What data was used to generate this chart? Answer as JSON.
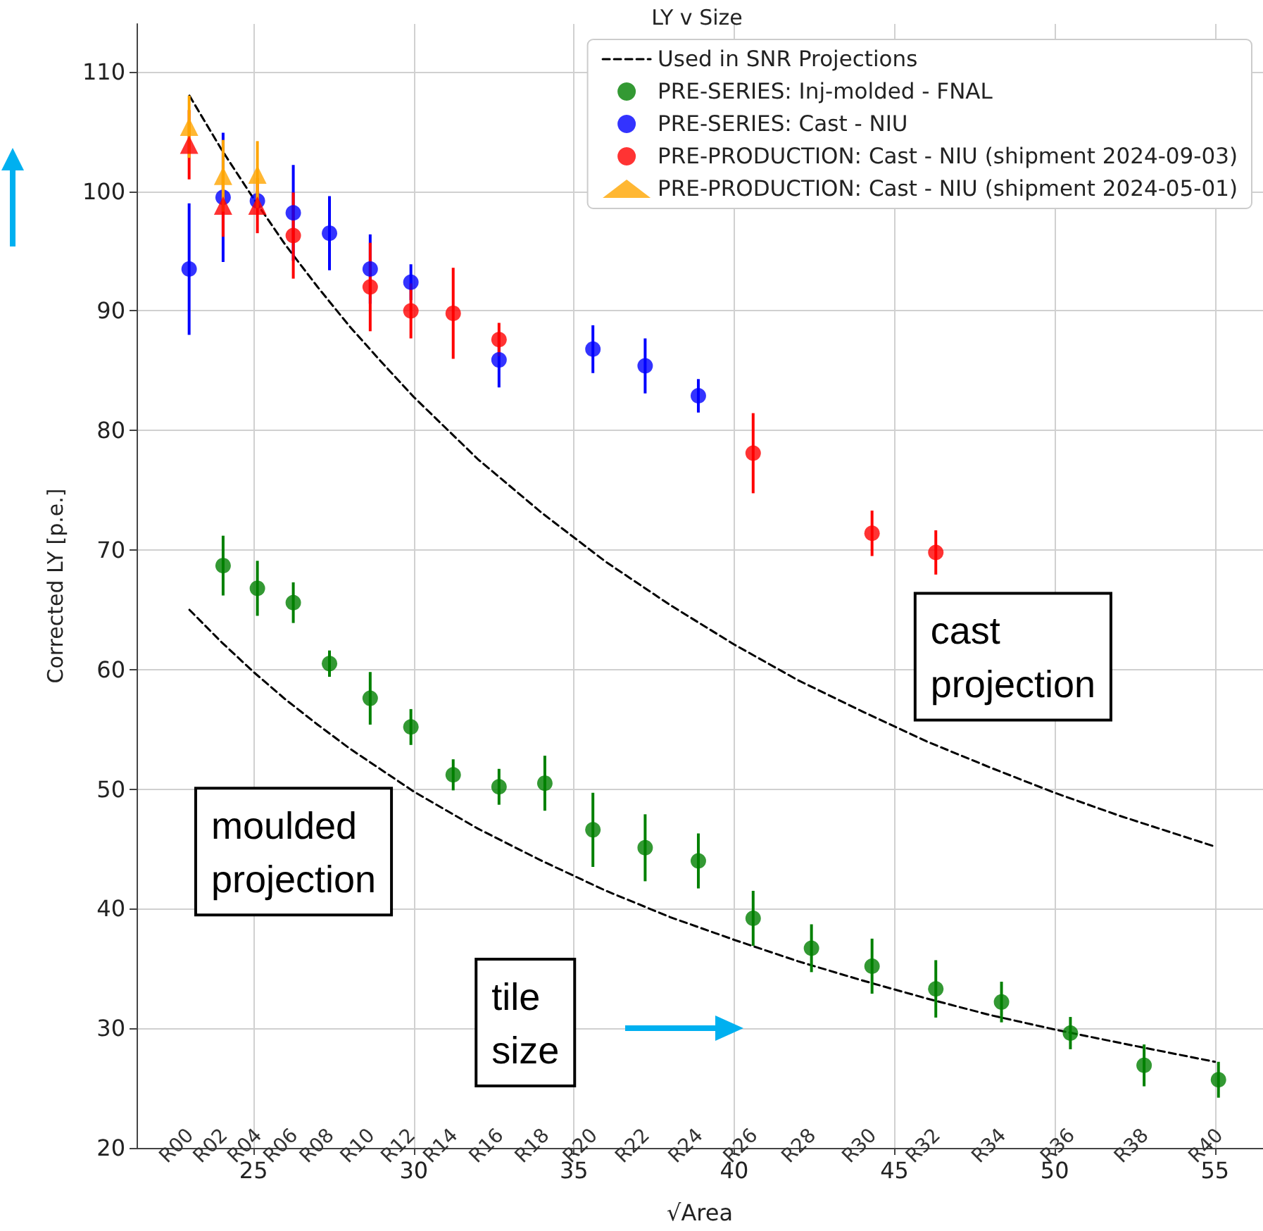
{
  "chart_data": {
    "type": "scatter",
    "title": "LY v Size",
    "xlabel": "√Area",
    "ylabel": "Corrected LY [p.e.]",
    "xlim": [
      21.35,
      56.5
    ],
    "ylim": [
      20,
      114
    ],
    "xticks": [
      25,
      30,
      35,
      40,
      45,
      50,
      55
    ],
    "yticks": [
      20,
      30,
      40,
      50,
      60,
      70,
      80,
      90,
      100,
      110
    ],
    "grid": true,
    "legend": "top right",
    "series": [
      {
        "type": "line",
        "name": "Used in SNR Projections",
        "color": "#000000",
        "line_style": "dashed",
        "marker": "none",
        "x": [
          23,
          24,
          25,
          26,
          27,
          28,
          29,
          30,
          32,
          34,
          36,
          38,
          40,
          42,
          44,
          46,
          48,
          50,
          52,
          55
        ],
        "values": [
          108,
          103.5,
          99.4,
          95.5,
          92,
          88.7,
          85.7,
          82.8,
          77.6,
          73.1,
          69,
          65.4,
          62.1,
          59.1,
          56.5,
          54,
          51.8,
          49.7,
          47.8,
          45.2
        ]
      },
      {
        "type": "line",
        "color": "#000000",
        "line_style": "dashed",
        "marker": "none",
        "x": [
          23,
          24,
          25,
          26,
          27,
          28,
          29,
          30,
          32,
          34,
          36,
          38,
          40,
          42,
          44,
          46,
          48,
          50,
          52,
          55
        ],
        "values": [
          65,
          62.3,
          59.8,
          57.5,
          55.4,
          53.4,
          51.6,
          49.8,
          46.7,
          44,
          41.5,
          39.3,
          37.4,
          35.6,
          34,
          32.5,
          31.1,
          29.9,
          28.8,
          27.2
        ]
      },
      {
        "name": "PRE-SERIES: Inj-molded - FNAL",
        "color": "#008000",
        "marker": "circle",
        "x": [
          24.05,
          25.12,
          26.24,
          27.37,
          28.64,
          29.91,
          31.23,
          32.66,
          34.09,
          35.59,
          37.22,
          38.88,
          40.59,
          42.41,
          44.3,
          46.29,
          48.34,
          50.49,
          52.79,
          55.11
        ],
        "values": [
          68.7,
          66.8,
          65.6,
          60.5,
          57.6,
          55.2,
          51.2,
          50.2,
          50.5,
          46.6,
          45.1,
          44,
          39.2,
          36.7,
          35.2,
          33.3,
          32.2,
          29.6,
          26.9,
          25.7
        ],
        "errors": [
          2.5,
          2.3,
          1.7,
          1.1,
          2.2,
          1.5,
          1.3,
          1.5,
          2.3,
          3.1,
          2.8,
          2.3,
          2.3,
          2,
          2.3,
          2.4,
          1.7,
          1.35,
          1.75,
          1.5
        ]
      },
      {
        "name": "PRE-SERIES: Cast - NIU",
        "color": "#0000ff",
        "marker": "circle",
        "x": [
          22.99,
          24.05,
          25.12,
          26.24,
          27.37,
          28.64,
          29.91,
          32.66,
          35.59,
          37.22,
          38.88
        ],
        "values": [
          93.5,
          99.5,
          99.2,
          98.2,
          96.5,
          93.5,
          92.4,
          85.9,
          86.8,
          85.4,
          82.9
        ],
        "errors": [
          5.5,
          5.4,
          null,
          4,
          3.1,
          2.9,
          1.5,
          2.3,
          2,
          2.3,
          1.4
        ]
      },
      {
        "name": "PRE-PRODUCTION: Cast - NIU (shipment 2024-09-03)",
        "color": "#ff0000",
        "marker": "circle",
        "x": [
          26.24,
          28.64,
          29.91,
          31.23,
          32.66,
          40.59,
          44.3,
          46.29
        ],
        "values": [
          96.3,
          92,
          90,
          89.8,
          87.6,
          78.1,
          71.4,
          69.8
        ],
        "errors": [
          3.6,
          3.7,
          2.3,
          3.8,
          1.4,
          3.35,
          1.9,
          1.85
        ]
      },
      {
        "color": "#ff0000",
        "marker": "triangle",
        "x": [
          22.99,
          24.05,
          25.12
        ],
        "values": [
          103.9,
          98.8,
          98.8
        ],
        "errors": [
          2.9,
          2.6,
          2.3
        ]
      },
      {
        "name": "PRE-PRODUCTION: Cast - NIU (shipment 2024-05-01)",
        "color": "#ffa500",
        "marker": "triangle",
        "x": [
          22.99,
          24.05,
          25.12
        ],
        "values": [
          105.4,
          101.3,
          101.4
        ],
        "errors": [
          2.6,
          3,
          2.8
        ]
      }
    ],
    "annotations": [
      "cast projection",
      "moulded projection",
      "tile size",
      "R00",
      "R02",
      "R04",
      "R06",
      "R08",
      "R10",
      "R12",
      "R14",
      "R16",
      "R18",
      "R20",
      "R22",
      "R24",
      "R26",
      "R28",
      "R30",
      "R32",
      "R34",
      "R36",
      "R38",
      "R40"
    ]
  }
}
